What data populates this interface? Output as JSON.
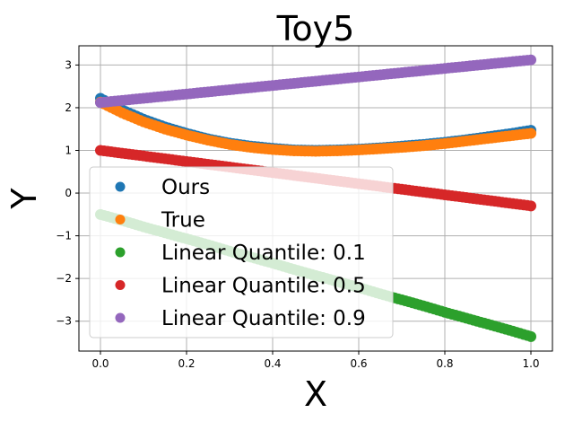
{
  "chart_data": {
    "type": "scatter",
    "title": "Toy5",
    "xlabel": "X",
    "ylabel": "Y",
    "xlim": [
      -0.05,
      1.05
    ],
    "ylim": [
      -3.7,
      3.45
    ],
    "xticks": [
      0.0,
      0.2,
      0.4,
      0.6,
      0.8,
      1.0
    ],
    "xtick_labels": [
      "0.0",
      "0.2",
      "0.4",
      "0.6",
      "0.8",
      "1.0"
    ],
    "yticks": [
      -3,
      -2,
      -1,
      0,
      1,
      2,
      3
    ],
    "ytick_labels": [
      "−3",
      "−2",
      "−1",
      "0",
      "1",
      "2",
      "3"
    ],
    "grid": true,
    "legend_position": "lower-left",
    "x": [
      0.0,
      0.05,
      0.1,
      0.15,
      0.2,
      0.25,
      0.3,
      0.35,
      0.4,
      0.45,
      0.5,
      0.55,
      0.6,
      0.65,
      0.7,
      0.75,
      0.8,
      0.85,
      0.9,
      0.95,
      1.0
    ],
    "series": [
      {
        "name": "Ours",
        "color": "#1f77b4",
        "values": [
          2.22,
          1.95,
          1.73,
          1.55,
          1.4,
          1.27,
          1.17,
          1.1,
          1.05,
          1.01,
          1.0,
          1.01,
          1.03,
          1.06,
          1.1,
          1.14,
          1.19,
          1.25,
          1.32,
          1.39,
          1.47
        ]
      },
      {
        "name": "True",
        "color": "#ff7f0e",
        "values": [
          2.13,
          1.88,
          1.67,
          1.5,
          1.36,
          1.24,
          1.14,
          1.07,
          1.02,
          0.99,
          0.98,
          0.99,
          1.01,
          1.04,
          1.07,
          1.11,
          1.16,
          1.22,
          1.28,
          1.34,
          1.4
        ]
      },
      {
        "name": "Linear Quantile: 0.1",
        "color": "#2ca02c",
        "values": [
          -0.5,
          -0.64,
          -0.79,
          -0.93,
          -1.07,
          -1.21,
          -1.36,
          -1.5,
          -1.64,
          -1.79,
          -1.93,
          -2.07,
          -2.21,
          -2.36,
          -2.5,
          -2.64,
          -2.79,
          -2.93,
          -3.07,
          -3.21,
          -3.36
        ]
      },
      {
        "name": "Linear Quantile: 0.5",
        "color": "#d62728",
        "values": [
          1.0,
          0.935,
          0.87,
          0.805,
          0.74,
          0.675,
          0.61,
          0.545,
          0.48,
          0.415,
          0.35,
          0.285,
          0.22,
          0.155,
          0.09,
          0.025,
          -0.04,
          -0.105,
          -0.17,
          -0.235,
          -0.3
        ]
      },
      {
        "name": "Linear Quantile: 0.9",
        "color": "#9467bd",
        "values": [
          2.12,
          2.17,
          2.22,
          2.27,
          2.32,
          2.37,
          2.42,
          2.47,
          2.52,
          2.57,
          2.62,
          2.67,
          2.72,
          2.77,
          2.82,
          2.87,
          2.92,
          2.97,
          3.02,
          3.07,
          3.12
        ]
      }
    ]
  }
}
